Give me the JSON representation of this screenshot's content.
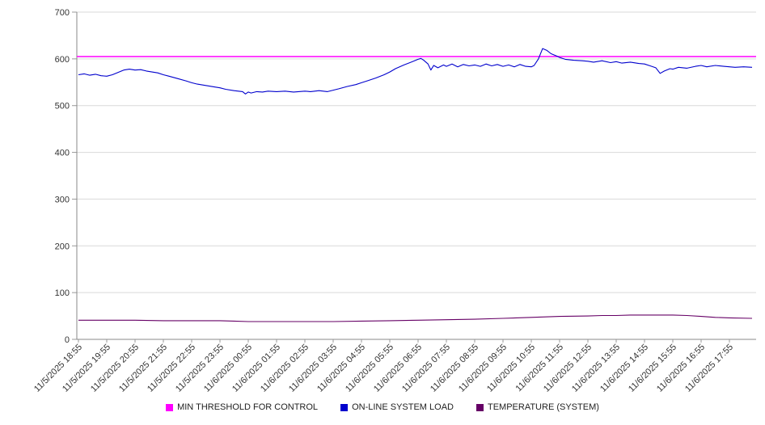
{
  "chart_data": {
    "type": "line",
    "title": "",
    "xlabel": "",
    "ylabel": "",
    "ylim": [
      0,
      700
    ],
    "y_ticks": [
      0,
      100,
      200,
      300,
      400,
      500,
      600,
      700
    ],
    "grid": "horizontal",
    "legend_position": "bottom",
    "x_tick_labels": [
      "11/5/2025 18:55",
      "11/5/2025 19:55",
      "11/5/2025 20:55",
      "11/5/2025 21:55",
      "11/5/2025 22:55",
      "11/5/2025 23:55",
      "11/6/2025 00:55",
      "11/6/2025 01:55",
      "11/6/2025 02:55",
      "11/6/2025 03:55",
      "11/6/2025 04:55",
      "11/6/2025 05:55",
      "11/6/2025 06:55",
      "11/6/2025 07:55",
      "11/6/2025 08:55",
      "11/6/2025 09:55",
      "11/6/2025 10:55",
      "11/6/2025 11:55",
      "11/6/2025 12:55",
      "11/6/2025 13:55",
      "11/6/2025 14:55",
      "11/6/2025 15:55",
      "11/6/2025 16:55",
      "11/6/2025 17:55"
    ],
    "series": [
      {
        "name": "MIN THRESHOLD FOR CONTROL",
        "color": "#ff00ff",
        "kind": "hline",
        "value": 605
      },
      {
        "name": "ON-LINE SYSTEM LOAD",
        "color": "#0000cd",
        "kind": "line",
        "points": [
          [
            0,
            566
          ],
          [
            0.2,
            568
          ],
          [
            0.4,
            565
          ],
          [
            0.6,
            567
          ],
          [
            0.8,
            564
          ],
          [
            1,
            563
          ],
          [
            1.2,
            566
          ],
          [
            1.4,
            571
          ],
          [
            1.6,
            576
          ],
          [
            1.8,
            578
          ],
          [
            2,
            576
          ],
          [
            2.2,
            577
          ],
          [
            2.4,
            574
          ],
          [
            2.6,
            572
          ],
          [
            2.8,
            570
          ],
          [
            3,
            566
          ],
          [
            3.2,
            563
          ],
          [
            3.5,
            558
          ],
          [
            3.8,
            553
          ],
          [
            4,
            549
          ],
          [
            4.2,
            546
          ],
          [
            4.5,
            543
          ],
          [
            4.8,
            540
          ],
          [
            5,
            538
          ],
          [
            5.2,
            535
          ],
          [
            5.5,
            532
          ],
          [
            5.8,
            530
          ],
          [
            5.9,
            525
          ],
          [
            6,
            529
          ],
          [
            6.1,
            527
          ],
          [
            6.3,
            530
          ],
          [
            6.5,
            529
          ],
          [
            6.7,
            531
          ],
          [
            7,
            530
          ],
          [
            7.3,
            531
          ],
          [
            7.6,
            529
          ],
          [
            8,
            531
          ],
          [
            8.2,
            530
          ],
          [
            8.5,
            532
          ],
          [
            8.8,
            530
          ],
          [
            9,
            533
          ],
          [
            9.2,
            536
          ],
          [
            9.5,
            541
          ],
          [
            9.8,
            545
          ],
          [
            10,
            549
          ],
          [
            10.2,
            553
          ],
          [
            10.5,
            559
          ],
          [
            10.8,
            566
          ],
          [
            11,
            572
          ],
          [
            11.2,
            579
          ],
          [
            11.5,
            587
          ],
          [
            11.8,
            594
          ],
          [
            12,
            599
          ],
          [
            12.1,
            601
          ],
          [
            12.2,
            597
          ],
          [
            12.35,
            589
          ],
          [
            12.45,
            576
          ],
          [
            12.55,
            586
          ],
          [
            12.7,
            581
          ],
          [
            12.9,
            587
          ],
          [
            13,
            584
          ],
          [
            13.2,
            589
          ],
          [
            13.4,
            583
          ],
          [
            13.6,
            588
          ],
          [
            13.8,
            585
          ],
          [
            14,
            587
          ],
          [
            14.2,
            584
          ],
          [
            14.4,
            589
          ],
          [
            14.6,
            585
          ],
          [
            14.8,
            588
          ],
          [
            15,
            584
          ],
          [
            15.2,
            587
          ],
          [
            15.4,
            583
          ],
          [
            15.6,
            588
          ],
          [
            15.8,
            584
          ],
          [
            16,
            583
          ],
          [
            16.1,
            586
          ],
          [
            16.25,
            600
          ],
          [
            16.4,
            622
          ],
          [
            16.55,
            618
          ],
          [
            16.7,
            611
          ],
          [
            16.9,
            606
          ],
          [
            17,
            603
          ],
          [
            17.2,
            599
          ],
          [
            17.5,
            597
          ],
          [
            17.8,
            596
          ],
          [
            18,
            595
          ],
          [
            18.2,
            593
          ],
          [
            18.5,
            596
          ],
          [
            18.8,
            592
          ],
          [
            19,
            594
          ],
          [
            19.2,
            591
          ],
          [
            19.5,
            593
          ],
          [
            19.8,
            590
          ],
          [
            20,
            589
          ],
          [
            20.2,
            585
          ],
          [
            20.4,
            581
          ],
          [
            20.55,
            569
          ],
          [
            20.7,
            574
          ],
          [
            20.9,
            579
          ],
          [
            21,
            578
          ],
          [
            21.2,
            582
          ],
          [
            21.5,
            580
          ],
          [
            21.8,
            584
          ],
          [
            22,
            586
          ],
          [
            22.2,
            583
          ],
          [
            22.5,
            586
          ],
          [
            22.8,
            584
          ],
          [
            23,
            583
          ],
          [
            23.2,
            582
          ],
          [
            23.5,
            583
          ],
          [
            23.8,
            582
          ]
        ]
      },
      {
        "name": "TEMPERATURE (SYSTEM)",
        "color": "#660066",
        "kind": "line",
        "points": [
          [
            0,
            41
          ],
          [
            1,
            41
          ],
          [
            2,
            41
          ],
          [
            3,
            40
          ],
          [
            4,
            40
          ],
          [
            5,
            40
          ],
          [
            5.5,
            39
          ],
          [
            6,
            38
          ],
          [
            7,
            38
          ],
          [
            8,
            38
          ],
          [
            9,
            38
          ],
          [
            10,
            39
          ],
          [
            11,
            40
          ],
          [
            12,
            41
          ],
          [
            13,
            42
          ],
          [
            14,
            43
          ],
          [
            15,
            45
          ],
          [
            16,
            47
          ],
          [
            17,
            49
          ],
          [
            18,
            50
          ],
          [
            18.5,
            51
          ],
          [
            19,
            51
          ],
          [
            19.5,
            52
          ],
          [
            20,
            52
          ],
          [
            20.5,
            52
          ],
          [
            21,
            52
          ],
          [
            21.5,
            51
          ],
          [
            22,
            49
          ],
          [
            22.5,
            47
          ],
          [
            23,
            46
          ],
          [
            23.8,
            45
          ]
        ]
      }
    ]
  }
}
